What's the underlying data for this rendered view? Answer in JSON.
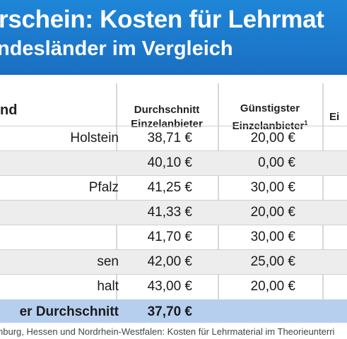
{
  "header": {
    "title": "rschein: Kosten für Lehrmat",
    "subtitle": "ndesländer im Vergleich"
  },
  "table": {
    "col_land": "nd",
    "col_avg": "Durchschnitt Einzelanbieter",
    "col_cheap": "Günstigster Einzelanbieter",
    "col_cheap_sup": "1",
    "col_more": "Ei",
    "rows": [
      {
        "land": "Holstein",
        "avg": "38,71 €",
        "cheap": "20,00 €"
      },
      {
        "land": "",
        "avg": "40,10 €",
        "cheap": "0,00 €"
      },
      {
        "land": "Pfalz",
        "avg": "41,25 €",
        "cheap": "30,00 €"
      },
      {
        "land": "",
        "avg": "41,33 €",
        "cheap": "20,00 €"
      },
      {
        "land": "",
        "avg": "41,70 €",
        "cheap": "30,00 €"
      },
      {
        "land": "sen",
        "avg": "42,00 €",
        "cheap": "25,00 €"
      },
      {
        "land": "halt",
        "avg": "43,00 €",
        "cheap": "20,00 €"
      }
    ],
    "average": {
      "land": "er Durchschnitt",
      "avg": "37,70 €",
      "cheap": ""
    }
  },
  "footnote": "nburg, Hessen und Nordrhein-Westfalen: Kosten für Lehrmaterial im Theorieunterri"
}
